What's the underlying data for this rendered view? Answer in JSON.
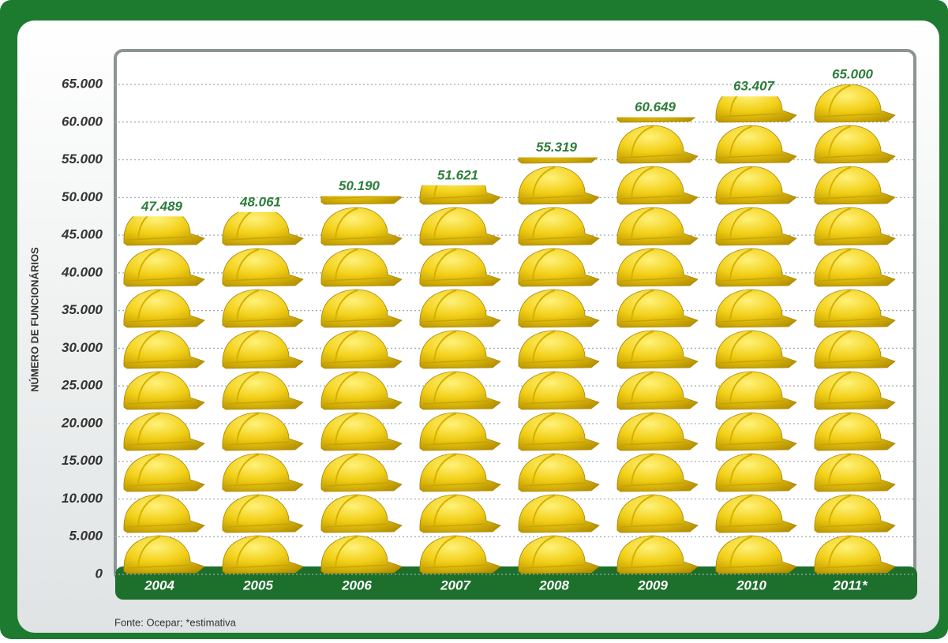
{
  "chart_data": {
    "type": "pictogram",
    "y_label": "NÚMERO DE FUNCIONÁRIOS",
    "source": "Fonte: Ocepar; *estimativa",
    "categories": [
      "2004",
      "2005",
      "2006",
      "2007",
      "2008",
      "2009",
      "2010",
      "2011*"
    ],
    "values": [
      47489,
      48061,
      50190,
      51621,
      55319,
      60649,
      63407,
      65000
    ],
    "value_labels": [
      "47.489",
      "48.061",
      "50.190",
      "51.621",
      "55.319",
      "60.649",
      "63.407",
      "65.000"
    ],
    "color": "#f2cf17",
    "ylim": [
      0,
      65000
    ],
    "yticks": [
      0,
      {
        "value": 5000,
        "label": "5.000"
      },
      {
        "value": 10000,
        "label": "10.000"
      },
      {
        "value": 15000,
        "label": "15.000"
      },
      {
        "value": 20000,
        "label": "20.000"
      },
      {
        "value": 25000,
        "label": "25.000"
      },
      {
        "value": 30000,
        "label": "30.000"
      },
      {
        "value": 35000,
        "label": "35.000"
      },
      {
        "value": 40000,
        "label": "40.000"
      },
      {
        "value": 45000,
        "label": "45.000"
      },
      {
        "value": 50000,
        "label": "50.000"
      },
      {
        "value": 55000,
        "label": "55.000"
      },
      {
        "value": 60000,
        "label": "60.000"
      },
      {
        "value": 65000,
        "label": "65.000"
      }
    ],
    "grid": true
  }
}
